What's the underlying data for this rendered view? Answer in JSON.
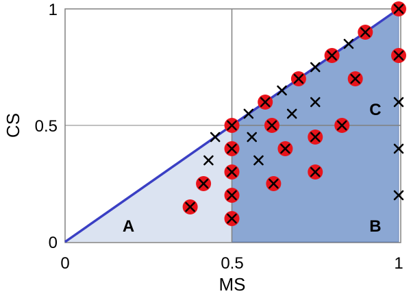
{
  "chart_data": {
    "type": "scatter",
    "xlabel": "MS",
    "ylabel": "CS",
    "xlim": [
      0,
      1
    ],
    "ylim": [
      0,
      1
    ],
    "x_ticks": [
      "0",
      "0.5",
      "1"
    ],
    "y_ticks": [
      "0",
      "0.5",
      "1"
    ],
    "grid": true,
    "colors": {
      "diagonal": "#3a3fc4",
      "region_light": "#dbe3f1",
      "region_dark": "#8ba7d3",
      "circle": "#e8141b",
      "cross": "#000000",
      "grid": "#808080"
    },
    "regions": [
      {
        "label": "A",
        "label_pos": [
          0.19,
          0.07
        ]
      },
      {
        "label": "B",
        "label_pos": [
          0.93,
          0.07
        ]
      },
      {
        "label": "C",
        "label_pos": [
          0.93,
          0.57
        ]
      }
    ],
    "circled_points": [
      [
        1.0,
        1.0
      ],
      [
        0.9,
        0.9
      ],
      [
        0.8,
        0.8
      ],
      [
        0.7,
        0.7
      ],
      [
        0.6,
        0.6
      ],
      [
        0.5,
        0.5
      ],
      [
        1.0,
        0.8
      ],
      [
        0.87,
        0.7
      ],
      [
        0.62,
        0.5
      ],
      [
        0.83,
        0.5
      ],
      [
        0.5,
        0.4
      ],
      [
        0.5,
        0.3
      ],
      [
        0.5,
        0.2
      ],
      [
        0.5,
        0.1
      ],
      [
        0.66,
        0.4
      ],
      [
        0.75,
        0.45
      ],
      [
        0.75,
        0.3
      ],
      [
        0.625,
        0.25
      ],
      [
        0.415,
        0.25
      ],
      [
        0.375,
        0.15
      ]
    ],
    "cross_only_points": [
      [
        0.85,
        0.85
      ],
      [
        0.75,
        0.75
      ],
      [
        0.65,
        0.65
      ],
      [
        0.55,
        0.55
      ],
      [
        0.75,
        0.6
      ],
      [
        0.68,
        0.55
      ],
      [
        0.45,
        0.45
      ],
      [
        0.56,
        0.45
      ],
      [
        0.43,
        0.35
      ],
      [
        0.58,
        0.35
      ],
      [
        1.0,
        0.6
      ],
      [
        1.0,
        0.4
      ],
      [
        1.0,
        0.2
      ]
    ]
  }
}
